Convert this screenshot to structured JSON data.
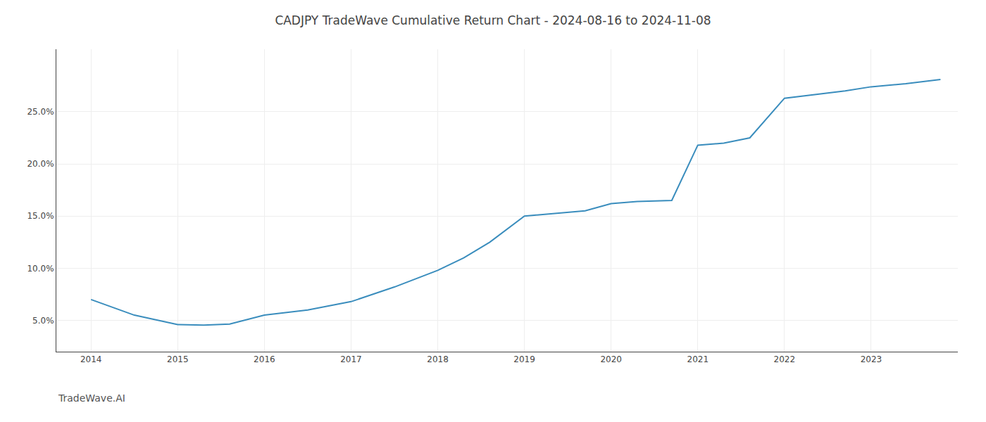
{
  "chart_data": {
    "type": "line",
    "title": "CADJPY TradeWave Cumulative Return Chart - 2024-08-16 to 2024-11-08",
    "annotations": [
      "TradeWave.AI"
    ],
    "x": [
      2014.0,
      2014.5,
      2015.0,
      2015.3,
      2015.6,
      2016.0,
      2016.5,
      2017.0,
      2017.5,
      2018.0,
      2018.3,
      2018.6,
      2019.0,
      2019.4,
      2019.7,
      2020.0,
      2020.3,
      2020.7,
      2021.0,
      2021.3,
      2021.6,
      2022.0,
      2022.3,
      2022.7,
      2023.0,
      2023.4,
      2023.8
    ],
    "values": [
      7.0,
      5.5,
      4.6,
      4.55,
      4.65,
      5.5,
      6.0,
      6.8,
      8.2,
      9.8,
      11.0,
      12.5,
      15.0,
      15.3,
      15.5,
      16.2,
      16.4,
      16.5,
      21.8,
      22.0,
      22.5,
      26.3,
      26.6,
      27.0,
      27.4,
      27.7,
      28.1
    ],
    "color": "#3a8dbd",
    "xlim": [
      2013.6,
      2024.0
    ],
    "xticks": [
      2014,
      2015,
      2016,
      2017,
      2018,
      2019,
      2020,
      2021,
      2022,
      2023
    ],
    "ylim": [
      2.0,
      31.0
    ],
    "yticks": [
      {
        "value": 5.0,
        "label": "5.0%"
      },
      {
        "value": 10.0,
        "label": "10.0%"
      },
      {
        "value": 15.0,
        "label": "15.0%"
      },
      {
        "value": 20.0,
        "label": "20.0%"
      },
      {
        "value": 25.0,
        "label": "25.0%"
      }
    ],
    "grid": true
  }
}
